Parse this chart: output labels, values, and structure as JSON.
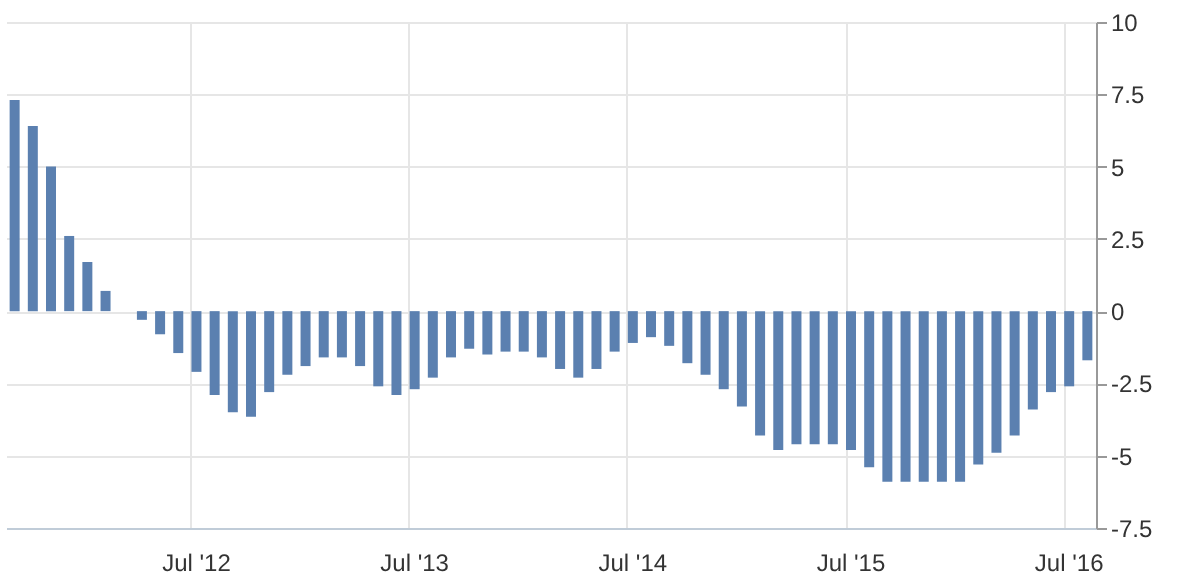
{
  "chart_data": {
    "type": "bar",
    "categories": [
      null,
      null,
      null,
      null,
      null,
      null,
      null,
      null,
      null,
      null,
      "Jul '12",
      null,
      null,
      null,
      null,
      null,
      null,
      null,
      null,
      null,
      null,
      null,
      "Jul '13",
      null,
      null,
      null,
      null,
      null,
      null,
      null,
      null,
      null,
      null,
      null,
      "Jul '14",
      null,
      null,
      null,
      null,
      null,
      null,
      null,
      null,
      null,
      null,
      null,
      "Jul '15",
      null,
      null,
      null,
      null,
      null,
      null,
      null,
      null,
      null,
      null,
      null,
      "Jul '16",
      null
    ],
    "values": [
      7.3,
      6.4,
      5.0,
      2.6,
      1.7,
      0.7,
      0,
      -0.3,
      -0.8,
      -1.45,
      -2.1,
      -2.9,
      -3.5,
      -3.65,
      -2.8,
      -2.2,
      -1.9,
      -1.6,
      -1.6,
      -1.9,
      -2.6,
      -2.9,
      -2.7,
      -2.3,
      -1.6,
      -1.3,
      -1.5,
      -1.4,
      -1.4,
      -1.6,
      -2.0,
      -2.3,
      -2.0,
      -1.4,
      -1.1,
      -0.9,
      -1.2,
      -1.8,
      -2.2,
      -2.7,
      -3.3,
      -4.3,
      -4.8,
      -4.6,
      -4.6,
      -4.6,
      -4.8,
      -5.4,
      -5.9,
      -5.9,
      -5.9,
      -5.9,
      -5.9,
      -5.3,
      -4.9,
      -4.3,
      -3.4,
      -2.8,
      -2.6,
      -1.7
    ],
    "color": "#5b80b0",
    "ylim": [
      -7.5,
      10
    ],
    "yticks": [
      -7.5,
      -5,
      -2.5,
      0,
      2.5,
      5,
      7.5,
      10
    ],
    "grid": true
  }
}
